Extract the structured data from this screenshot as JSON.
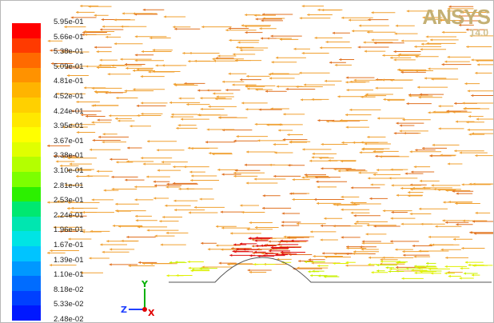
{
  "colorbar": {
    "labels": [
      "5.95e-01",
      "5.66e-01",
      "5.38e-01",
      "5.09e-01",
      "4.81e-01",
      "4.52e-01",
      "4.24e-01",
      "3.95e-01",
      "3.67e-01",
      "3.38e-01",
      "3.10e-01",
      "2.81e-01",
      "2.53e-01",
      "2.24e-01",
      "1.96e-01",
      "1.67e-01",
      "1.39e-01",
      "1.10e-01",
      "8.18e-02",
      "5.33e-02",
      "2.48e-02"
    ],
    "colors": [
      "#ff0000",
      "#ff3a00",
      "#ff6a00",
      "#ff9200",
      "#ffb400",
      "#ffd000",
      "#ffe800",
      "#ffff00",
      "#e0ff00",
      "#b4ff00",
      "#7cff00",
      "#2cf000",
      "#00e870",
      "#00e6b0",
      "#00e4e4",
      "#00c4ff",
      "#0098ff",
      "#006cff",
      "#0040ff",
      "#0018ff"
    ]
  },
  "logo": {
    "text": "ANSYS",
    "version": "14.0"
  },
  "axes_triad": {
    "x": "X",
    "y": "Y",
    "z": "Z"
  },
  "colors": {
    "vector_main": "#f0a030",
    "vector_dark": "#e07020",
    "vector_hot": "#e01010",
    "vector_slow": "#e0f000",
    "wall": "#555555"
  }
}
